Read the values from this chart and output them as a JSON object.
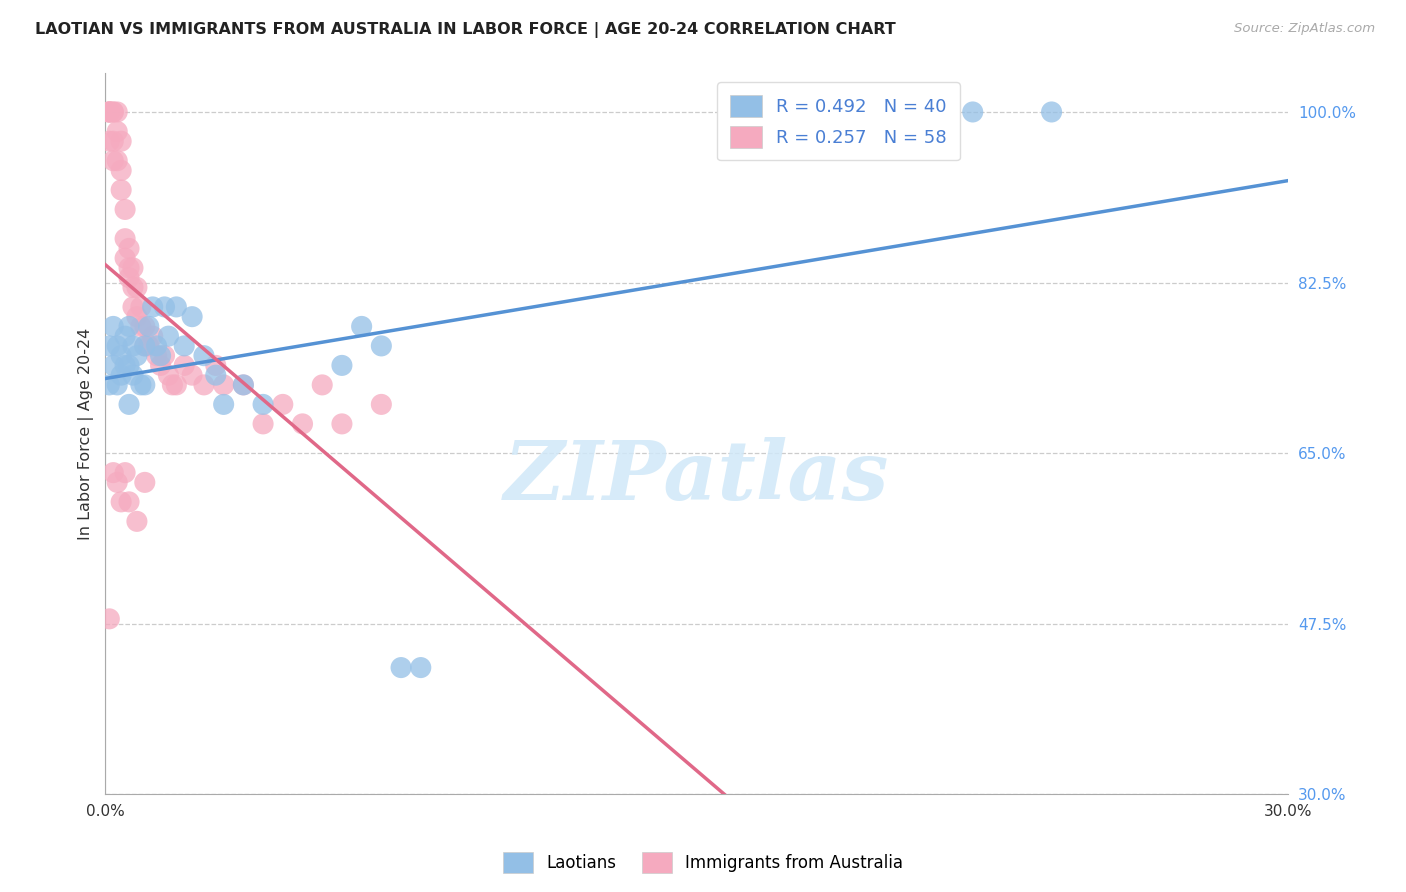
{
  "title": "LAOTIAN VS IMMIGRANTS FROM AUSTRALIA IN LABOR FORCE | AGE 20-24 CORRELATION CHART",
  "source": "Source: ZipAtlas.com",
  "ylabel": "In Labor Force | Age 20-24",
  "xlim": [
    0.0,
    0.3
  ],
  "ylim": [
    0.3,
    1.04
  ],
  "ytick_positions": [
    0.3,
    0.475,
    0.65,
    0.825,
    1.0
  ],
  "ytick_labels": [
    "30.0%",
    "47.5%",
    "65.0%",
    "82.5%",
    "100.0%"
  ],
  "grid_color": "#cccccc",
  "background_color": "#ffffff",
  "blue_color": "#93bfe6",
  "pink_color": "#f5aabf",
  "blue_line_color": "#5592d4",
  "pink_line_color": "#e06888",
  "blue_R": 0.492,
  "blue_N": 40,
  "pink_R": 0.257,
  "pink_N": 58,
  "watermark_text": "ZIPatlas",
  "legend_label_blue": "Laotians",
  "legend_label_pink": "Immigrants from Australia",
  "blue_x": [
    0.001,
    0.001,
    0.002,
    0.002,
    0.003,
    0.003,
    0.004,
    0.004,
    0.005,
    0.005,
    0.006,
    0.006,
    0.006,
    0.007,
    0.007,
    0.008,
    0.009,
    0.01,
    0.01,
    0.011,
    0.012,
    0.013,
    0.014,
    0.015,
    0.016,
    0.018,
    0.02,
    0.022,
    0.025,
    0.028,
    0.03,
    0.035,
    0.04,
    0.06,
    0.065,
    0.07,
    0.075,
    0.08,
    0.22,
    0.24
  ],
  "blue_y": [
    0.76,
    0.72,
    0.78,
    0.74,
    0.76,
    0.72,
    0.75,
    0.73,
    0.77,
    0.74,
    0.78,
    0.74,
    0.7,
    0.76,
    0.73,
    0.75,
    0.72,
    0.76,
    0.72,
    0.78,
    0.8,
    0.76,
    0.75,
    0.8,
    0.77,
    0.8,
    0.76,
    0.79,
    0.75,
    0.73,
    0.7,
    0.72,
    0.7,
    0.74,
    0.78,
    0.76,
    0.43,
    0.43,
    1.0,
    1.0
  ],
  "pink_x": [
    0.001,
    0.001,
    0.001,
    0.001,
    0.001,
    0.002,
    0.002,
    0.002,
    0.002,
    0.003,
    0.003,
    0.003,
    0.004,
    0.004,
    0.004,
    0.005,
    0.005,
    0.005,
    0.006,
    0.006,
    0.006,
    0.007,
    0.007,
    0.007,
    0.008,
    0.008,
    0.009,
    0.009,
    0.01,
    0.01,
    0.011,
    0.012,
    0.013,
    0.014,
    0.015,
    0.016,
    0.017,
    0.018,
    0.02,
    0.022,
    0.025,
    0.028,
    0.03,
    0.035,
    0.04,
    0.045,
    0.05,
    0.055,
    0.06,
    0.07,
    0.001,
    0.002,
    0.003,
    0.004,
    0.005,
    0.006,
    0.008,
    0.01
  ],
  "pink_y": [
    1.0,
    1.0,
    1.0,
    1.0,
    0.97,
    1.0,
    1.0,
    0.97,
    0.95,
    1.0,
    0.98,
    0.95,
    0.97,
    0.94,
    0.92,
    0.9,
    0.87,
    0.85,
    0.86,
    0.84,
    0.83,
    0.84,
    0.82,
    0.8,
    0.82,
    0.79,
    0.8,
    0.78,
    0.78,
    0.76,
    0.76,
    0.77,
    0.75,
    0.74,
    0.75,
    0.73,
    0.72,
    0.72,
    0.74,
    0.73,
    0.72,
    0.74,
    0.72,
    0.72,
    0.68,
    0.7,
    0.68,
    0.72,
    0.68,
    0.7,
    0.48,
    0.63,
    0.62,
    0.6,
    0.63,
    0.6,
    0.58,
    0.62
  ]
}
